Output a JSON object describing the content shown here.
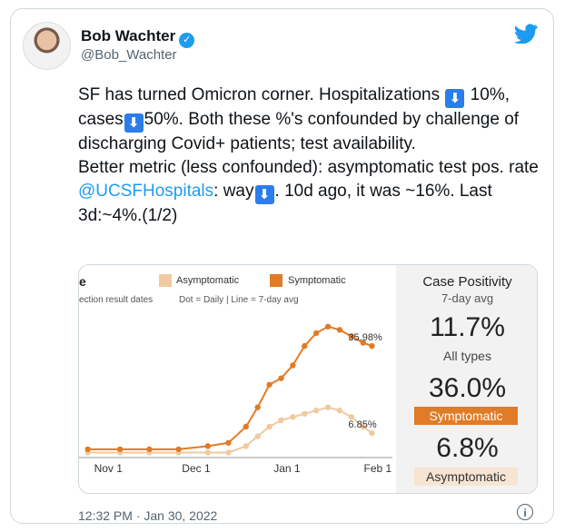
{
  "author": {
    "name": "Bob Wachter",
    "handle": "@Bob_Wachter",
    "verified_icon": "verified-badge-icon"
  },
  "tweet": {
    "line1_a": "SF has turned Omicron corner. Hospitalizations ",
    "line1_b": " 10%, cases",
    "line1_c": "50%. Both these %'s confounded by challenge of discharging Covid+ patients; test availability.",
    "line2_a": "Better metric (less confounded): asymptomatic test pos. rate ",
    "mention": "@UCSFHospitals",
    "line2_b": ": way",
    "line2_c": ". 10d ago, it was ~16%. Last 3d:~4%.(1/2)",
    "arrow_icon": "down-arrow-emoji-icon"
  },
  "timestamp": "12:32 PM · Jan 30, 2022",
  "chart_header": {
    "cut_title": "e",
    "note": "ection result dates",
    "dot_line_note": "Dot = Daily  |  Line = 7-day avg"
  },
  "panel": {
    "title": "Case Positivity",
    "subtitle": "7-day avg",
    "all_value": "11.7%",
    "all_label": "All types",
    "symp_value": "36.0%",
    "symp_label": "Symptomatic",
    "asymp_value": "6.8%",
    "asymp_label": "Asymptomatic"
  },
  "colors": {
    "symptomatic": "#e07b27",
    "asymptomatic": "#f0caa0",
    "twitter_blue": "#1d9bf0"
  },
  "chart_data": {
    "type": "scatter",
    "title": "",
    "xlabel": "",
    "ylabel": "",
    "x_ticks": [
      "Nov 1",
      "Dec 1",
      "Jan 1",
      "Feb 1"
    ],
    "ylim": [
      0,
      45
    ],
    "grid": false,
    "legend": [
      "Asymptomatic",
      "Symptomatic"
    ],
    "legend_placement": "top",
    "series": [
      {
        "name": "Symptomatic",
        "end_label": "35.98%",
        "dates": [
          "2021-10-25",
          "2021-11-05",
          "2021-11-15",
          "2021-11-25",
          "2021-12-05",
          "2021-12-12",
          "2021-12-18",
          "2021-12-22",
          "2021-12-26",
          "2021-12-30",
          "2022-01-03",
          "2022-01-07",
          "2022-01-11",
          "2022-01-15",
          "2022-01-19",
          "2022-01-23",
          "2022-01-27",
          "2022-01-30"
        ],
        "values": [
          2,
          2,
          2,
          2,
          3,
          4,
          9,
          15,
          22,
          24,
          28,
          34,
          38,
          40,
          39,
          37,
          35,
          34
        ]
      },
      {
        "name": "Asymptomatic",
        "end_label": "6.85%",
        "dates": [
          "2021-10-25",
          "2021-11-05",
          "2021-11-15",
          "2021-11-25",
          "2021-12-05",
          "2021-12-12",
          "2021-12-18",
          "2021-12-22",
          "2021-12-26",
          "2021-12-30",
          "2022-01-03",
          "2022-01-07",
          "2022-01-11",
          "2022-01-15",
          "2022-01-19",
          "2022-01-23",
          "2022-01-27",
          "2022-01-30"
        ],
        "values": [
          1,
          1,
          1,
          1,
          1,
          1,
          3,
          6,
          9,
          11,
          12,
          13,
          14,
          15,
          14,
          12,
          9,
          7
        ]
      }
    ]
  }
}
